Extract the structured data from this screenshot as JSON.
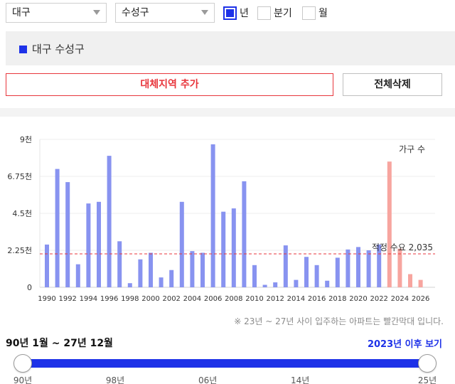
{
  "filters": {
    "city": "대구",
    "district": "수성구",
    "period_options": [
      {
        "label": "년",
        "checked": true
      },
      {
        "label": "분기",
        "checked": false
      },
      {
        "label": "월",
        "checked": false
      }
    ]
  },
  "region_tag": "대구 수성구",
  "buttons": {
    "add_region": "대체지역 추가",
    "delete_all": "전체삭제"
  },
  "chart_data": {
    "type": "bar",
    "legend_label": "가구 수",
    "y_ticks": [
      "0",
      "2.25천",
      "4.5천",
      "6.75천",
      "9천"
    ],
    "ylim": [
      0,
      9000
    ],
    "x_tick_labels": [
      "1990",
      "1992",
      "1994",
      "1996",
      "1998",
      "2000",
      "2002",
      "2004",
      "2006",
      "2008",
      "2010",
      "2012",
      "2014",
      "2016",
      "2018",
      "2020",
      "2022",
      "2024",
      "2026"
    ],
    "categories": [
      1990,
      1991,
      1992,
      1993,
      1994,
      1995,
      1996,
      1997,
      1998,
      1999,
      2000,
      2001,
      2002,
      2003,
      2004,
      2005,
      2006,
      2007,
      2008,
      2009,
      2010,
      2011,
      2012,
      2013,
      2014,
      2015,
      2016,
      2017,
      2018,
      2019,
      2020,
      2021,
      2022,
      2023,
      2024,
      2025,
      2026
    ],
    "series": [
      {
        "values": [
          2600,
          7200,
          6400,
          1400,
          5100,
          5200,
          8000,
          2800,
          250,
          1700,
          2100,
          600,
          1050,
          5200,
          2200,
          2100,
          8700,
          4600,
          4800,
          6450,
          1350,
          150,
          300,
          2550,
          450,
          1850,
          1350,
          400,
          1800,
          2300,
          2450,
          2250,
          2600,
          7650,
          2350,
          800,
          450
        ],
        "colors": {
          "actual": "#8893f0",
          "planned": "#f7a59f"
        },
        "planned_from": 2023
      }
    ],
    "reference_line": {
      "label": "적정 수요 2,035",
      "value": 2035,
      "color": "#e8363c"
    }
  },
  "note": "※ 23년 ~ 27년 사이 입주하는 아파트는 빨간막대 입니다.",
  "range": {
    "label": "90년 1월 ~ 27년 12월",
    "after_link": "2023년 이후 보기",
    "slider_labels": [
      "90년",
      "98년",
      "06년",
      "14년",
      "25년"
    ],
    "slider_min": 1990,
    "slider_max": 2025,
    "accent": "#1e32e8"
  }
}
